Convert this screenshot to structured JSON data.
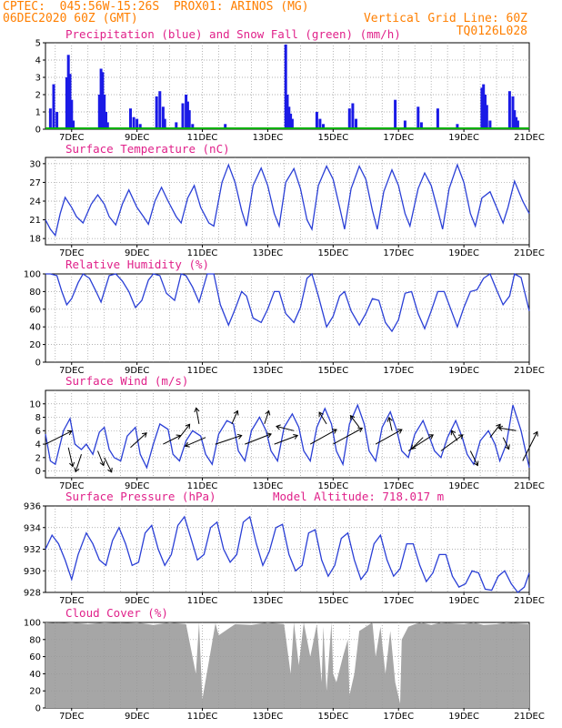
{
  "header": {
    "line1": "CPTEC:  045:56W-15:26S  PROX01: ARINOS (MG)",
    "line2": "06DEC2020 60Z (GMT)",
    "grid_note": "Vertical Grid Line: 60Z",
    "code": "TQ0126L028"
  },
  "colors": {
    "header": "#ff7f00",
    "title": "#e0218a",
    "precip": "#1a1ae6",
    "snow": "#00b000",
    "line": "#2a3fd6",
    "wind_arrow": "#000000",
    "cloud": "#a6a6a6",
    "grid": "#999999"
  },
  "x_tick_labels": [
    "7DEC",
    "9DEC",
    "11DEC",
    "13DEC",
    "15DEC",
    "17DEC",
    "19DEC",
    "21DEC"
  ],
  "x_range_days": [
    6.2,
    21.0
  ],
  "chart_data": [
    {
      "type": "bar",
      "name": "precip",
      "title": "Precipitation (blue) and Snow Fall (green) (mm/h)",
      "ylim": [
        0,
        5
      ],
      "yticks": [
        0,
        1,
        2,
        3,
        4,
        5
      ],
      "x_day": [
        6.35,
        6.45,
        6.55,
        6.85,
        6.9,
        6.95,
        7.0,
        7.05,
        7.85,
        7.9,
        7.95,
        8.0,
        8.05,
        8.1,
        8.8,
        8.9,
        9.0,
        9.1,
        9.6,
        9.7,
        9.8,
        9.85,
        10.2,
        10.4,
        10.5,
        10.55,
        10.6,
        10.7,
        11.7,
        13.55,
        13.6,
        13.65,
        13.7,
        13.75,
        14.5,
        14.6,
        14.7,
        15.5,
        15.6,
        15.7,
        16.9,
        17.2,
        17.6,
        17.7,
        18.2,
        18.8,
        19.55,
        19.6,
        19.65,
        19.7,
        19.8,
        20.4,
        20.5,
        20.55,
        20.6,
        20.65
      ],
      "values": [
        1.2,
        2.6,
        1.0,
        3.0,
        4.3,
        3.2,
        1.7,
        0.5,
        2.0,
        3.5,
        3.3,
        2.0,
        1.0,
        0.4,
        1.2,
        0.7,
        0.6,
        0.3,
        1.9,
        2.2,
        1.3,
        0.6,
        0.4,
        1.5,
        2.0,
        1.6,
        1.1,
        0.3,
        0.3,
        4.9,
        2.0,
        1.3,
        0.9,
        0.6,
        1.0,
        0.6,
        0.3,
        1.2,
        1.5,
        0.6,
        1.7,
        0.5,
        1.3,
        0.4,
        1.2,
        0.3,
        2.4,
        2.6,
        2.0,
        1.4,
        0.5,
        2.2,
        1.9,
        1.1,
        0.7,
        0.5
      ],
      "snow_values": []
    },
    {
      "type": "line",
      "name": "temperature",
      "title": "Surface Temperature (nC)",
      "ylim": [
        17,
        31
      ],
      "yticks": [
        18,
        21,
        24,
        27,
        30
      ],
      "x_day": [
        6.2,
        6.35,
        6.5,
        6.65,
        6.8,
        7.0,
        7.15,
        7.35,
        7.6,
        7.8,
        8.0,
        8.15,
        8.35,
        8.55,
        8.75,
        9.0,
        9.2,
        9.35,
        9.55,
        9.75,
        9.95,
        10.2,
        10.35,
        10.55,
        10.75,
        10.95,
        11.2,
        11.35,
        11.6,
        11.8,
        12.0,
        12.2,
        12.35,
        12.55,
        12.8,
        13.0,
        13.2,
        13.35,
        13.55,
        13.8,
        14.0,
        14.2,
        14.35,
        14.55,
        14.8,
        15.0,
        15.2,
        15.35,
        15.55,
        15.8,
        16.0,
        16.2,
        16.35,
        16.55,
        16.8,
        17.0,
        17.2,
        17.35,
        17.6,
        17.8,
        18.0,
        18.2,
        18.35,
        18.55,
        18.8,
        19.0,
        19.2,
        19.35,
        19.55,
        19.8,
        20.0,
        20.2,
        20.35,
        20.55,
        20.8,
        21.0
      ],
      "values": [
        21.0,
        19.5,
        18.5,
        22.0,
        24.6,
        23.0,
        21.5,
        20.5,
        23.5,
        25.0,
        23.5,
        21.5,
        20.2,
        23.5,
        25.8,
        23.0,
        21.5,
        20.3,
        24.0,
        26.2,
        24.0,
        21.5,
        20.5,
        24.5,
        26.5,
        23.0,
        20.5,
        20.0,
        27.0,
        29.8,
        27.0,
        22.5,
        20.0,
        26.5,
        29.3,
        26.5,
        22.0,
        20.0,
        27.0,
        29.2,
        26.0,
        21.0,
        19.5,
        26.5,
        29.6,
        27.5,
        23.0,
        19.5,
        26.0,
        29.6,
        27.5,
        22.5,
        19.5,
        25.5,
        29.0,
        26.5,
        22.0,
        20.0,
        26.0,
        28.5,
        26.5,
        22.5,
        19.5,
        26.0,
        29.8,
        27.0,
        22.0,
        20.0,
        24.5,
        25.5,
        23.0,
        20.5,
        23.0,
        27.2,
        24.0,
        22.0
      ]
    },
    {
      "type": "line",
      "name": "humidity",
      "title": "Relative Humidity (%)",
      "ylim": [
        0,
        100
      ],
      "yticks": [
        0,
        20,
        40,
        60,
        80,
        100
      ],
      "x_day": [
        6.2,
        6.35,
        6.55,
        6.7,
        6.85,
        7.0,
        7.2,
        7.35,
        7.55,
        7.75,
        7.9,
        8.15,
        8.35,
        8.55,
        8.75,
        8.95,
        9.15,
        9.35,
        9.5,
        9.7,
        9.9,
        10.15,
        10.35,
        10.5,
        10.7,
        10.9,
        11.15,
        11.35,
        11.55,
        11.8,
        12.0,
        12.2,
        12.35,
        12.55,
        12.8,
        13.0,
        13.2,
        13.35,
        13.55,
        13.8,
        14.0,
        14.2,
        14.35,
        14.55,
        14.8,
        15.0,
        15.2,
        15.35,
        15.55,
        15.8,
        16.0,
        16.2,
        16.4,
        16.6,
        16.8,
        17.0,
        17.2,
        17.4,
        17.6,
        17.8,
        18.0,
        18.2,
        18.4,
        18.6,
        18.8,
        19.0,
        19.2,
        19.4,
        19.6,
        19.8,
        20.0,
        20.2,
        20.4,
        20.55,
        20.75,
        21.0
      ],
      "values": [
        100,
        100,
        98,
        80,
        65,
        72,
        90,
        100,
        95,
        80,
        68,
        98,
        100,
        92,
        80,
        62,
        70,
        93,
        100,
        98,
        78,
        70,
        100,
        98,
        85,
        68,
        100,
        100,
        65,
        42,
        60,
        80,
        75,
        50,
        45,
        60,
        80,
        80,
        55,
        45,
        62,
        95,
        100,
        75,
        40,
        52,
        75,
        80,
        58,
        42,
        55,
        72,
        70,
        45,
        35,
        48,
        78,
        80,
        55,
        38,
        58,
        80,
        80,
        60,
        40,
        62,
        80,
        82,
        95,
        100,
        82,
        65,
        75,
        100,
        96,
        58
      ]
    },
    {
      "type": "line",
      "name": "wind",
      "title": "Surface Wind (m/s)",
      "ylim": [
        -1,
        12
      ],
      "yticks": [
        0,
        2,
        4,
        6,
        8,
        10
      ],
      "x_day": [
        6.2,
        6.35,
        6.5,
        6.75,
        6.95,
        7.1,
        7.3,
        7.45,
        7.65,
        7.85,
        8.0,
        8.15,
        8.3,
        8.5,
        8.7,
        8.95,
        9.1,
        9.3,
        9.5,
        9.7,
        9.95,
        10.1,
        10.3,
        10.5,
        10.7,
        10.95,
        11.1,
        11.3,
        11.5,
        11.75,
        11.95,
        12.1,
        12.3,
        12.5,
        12.75,
        12.95,
        13.1,
        13.3,
        13.5,
        13.75,
        13.95,
        14.1,
        14.3,
        14.5,
        14.75,
        14.95,
        15.1,
        15.3,
        15.5,
        15.75,
        15.95,
        16.1,
        16.3,
        16.5,
        16.75,
        16.95,
        17.1,
        17.3,
        17.5,
        17.75,
        17.95,
        18.1,
        18.3,
        18.5,
        18.75,
        18.95,
        19.1,
        19.3,
        19.5,
        19.75,
        19.95,
        20.1,
        20.3,
        20.5,
        20.75,
        21.0
      ],
      "values": [
        5.5,
        1.5,
        1.0,
        6.0,
        7.8,
        4.0,
        3.2,
        4.0,
        2.5,
        5.8,
        6.5,
        3.2,
        2.0,
        1.5,
        5.2,
        6.5,
        2.5,
        0.5,
        4.0,
        7.0,
        6.2,
        2.5,
        1.5,
        4.5,
        6.0,
        5.2,
        2.5,
        1.0,
        5.5,
        7.5,
        7.0,
        3.0,
        1.5,
        6.0,
        8.0,
        6.0,
        3.0,
        1.5,
        6.5,
        8.5,
        6.5,
        3.0,
        1.5,
        6.5,
        9.3,
        7.0,
        3.0,
        1.0,
        7.0,
        9.8,
        7.0,
        3.0,
        1.5,
        6.5,
        8.8,
        6.0,
        3.0,
        2.0,
        5.5,
        7.5,
        5.0,
        3.0,
        2.0,
        5.0,
        7.5,
        5.0,
        2.5,
        1.0,
        4.5,
        6.0,
        4.0,
        1.5,
        4.0,
        9.8,
        6.0,
        0.5
      ],
      "vectors": [
        {
          "day": 6.2,
          "speed": 4.0,
          "dx": 3.6,
          "dy": 1.8
        },
        {
          "day": 6.9,
          "speed": 3.5,
          "dx": 0.6,
          "dy": -2.6
        },
        {
          "day": 7.3,
          "speed": 2.5,
          "dx": -0.8,
          "dy": -2.4
        },
        {
          "day": 7.8,
          "speed": 3.0,
          "dx": 0.8,
          "dy": -2.0
        },
        {
          "day": 8.0,
          "speed": 2.0,
          "dx": 1.0,
          "dy": -2.0
        },
        {
          "day": 8.8,
          "speed": 3.5,
          "dx": 2.2,
          "dy": 2.0
        },
        {
          "day": 9.8,
          "speed": 4.0,
          "dx": 2.4,
          "dy": 1.2
        },
        {
          "day": 10.3,
          "speed": 5.0,
          "dx": 1.4,
          "dy": 1.8
        },
        {
          "day": 10.9,
          "speed": 7.0,
          "dx": -0.4,
          "dy": 2.2
        },
        {
          "day": 11.1,
          "speed": 5.0,
          "dx": -2.8,
          "dy": -1.2
        },
        {
          "day": 11.4,
          "speed": 4.0,
          "dx": 3.6,
          "dy": 1.2
        },
        {
          "day": 11.9,
          "speed": 7.0,
          "dx": 0.8,
          "dy": 1.8
        },
        {
          "day": 12.3,
          "speed": 4.0,
          "dx": 3.6,
          "dy": 1.4
        },
        {
          "day": 12.9,
          "speed": 7.0,
          "dx": 0.6,
          "dy": 1.8
        },
        {
          "day": 13.2,
          "speed": 4.0,
          "dx": 3.2,
          "dy": 1.2
        },
        {
          "day": 13.8,
          "speed": 6.0,
          "dx": -2.4,
          "dy": 0.6
        },
        {
          "day": 14.3,
          "speed": 4.0,
          "dx": 3.6,
          "dy": 2.0
        },
        {
          "day": 14.8,
          "speed": 7.0,
          "dx": -1.0,
          "dy": 1.6
        },
        {
          "day": 15.0,
          "speed": 4.0,
          "dx": 4.0,
          "dy": 2.2
        },
        {
          "day": 15.8,
          "speed": 6.5,
          "dx": -1.2,
          "dy": 1.6
        },
        {
          "day": 16.3,
          "speed": 4.0,
          "dx": 3.6,
          "dy": 2.0
        },
        {
          "day": 16.8,
          "speed": 6.0,
          "dx": -0.4,
          "dy": 1.8
        },
        {
          "day": 17.3,
          "speed": 3.0,
          "dx": 3.4,
          "dy": 2.2
        },
        {
          "day": 17.75,
          "speed": 5.0,
          "dx": -1.6,
          "dy": -1.6
        },
        {
          "day": 18.3,
          "speed": 3.0,
          "dx": 3.0,
          "dy": 2.2
        },
        {
          "day": 18.8,
          "speed": 4.5,
          "dx": -0.8,
          "dy": 1.4
        },
        {
          "day": 19.2,
          "speed": 3.0,
          "dx": 1.0,
          "dy": -2.0
        },
        {
          "day": 19.8,
          "speed": 5.0,
          "dx": 1.4,
          "dy": 1.8
        },
        {
          "day": 20.2,
          "speed": 5.0,
          "dx": 0.8,
          "dy": -1.6
        },
        {
          "day": 20.6,
          "speed": 6.0,
          "dx": -2.4,
          "dy": 0.4
        },
        {
          "day": 20.8,
          "speed": 1.5,
          "dx": 2.0,
          "dy": 4.0
        }
      ]
    },
    {
      "type": "line",
      "name": "pressure",
      "title": "Surface Pressure (hPa)",
      "annotation": "Model Altitude: 718.017 m",
      "ylim": [
        928,
        936
      ],
      "yticks": [
        928,
        930,
        932,
        934,
        936
      ],
      "x_day": [
        6.2,
        6.4,
        6.6,
        6.8,
        7.0,
        7.2,
        7.45,
        7.65,
        7.85,
        8.05,
        8.25,
        8.45,
        8.65,
        8.85,
        9.05,
        9.25,
        9.45,
        9.65,
        9.85,
        10.05,
        10.25,
        10.45,
        10.65,
        10.85,
        11.05,
        11.25,
        11.45,
        11.65,
        11.85,
        12.05,
        12.25,
        12.45,
        12.65,
        12.85,
        13.05,
        13.25,
        13.45,
        13.65,
        13.85,
        14.05,
        14.25,
        14.45,
        14.65,
        14.85,
        15.05,
        15.25,
        15.45,
        15.65,
        15.85,
        16.05,
        16.25,
        16.45,
        16.65,
        16.85,
        17.05,
        17.25,
        17.45,
        17.65,
        17.85,
        18.05,
        18.25,
        18.45,
        18.65,
        18.85,
        19.05,
        19.25,
        19.45,
        19.65,
        19.85,
        20.05,
        20.25,
        20.45,
        20.65,
        20.85,
        21.0
      ],
      "values": [
        932.0,
        933.3,
        932.5,
        931.0,
        929.2,
        931.5,
        933.5,
        932.5,
        931.0,
        930.5,
        932.8,
        934.0,
        932.5,
        930.5,
        930.8,
        933.5,
        934.2,
        932.0,
        930.5,
        931.5,
        934.2,
        935.0,
        933.0,
        931.0,
        931.5,
        934.0,
        934.5,
        932.0,
        930.8,
        931.5,
        934.5,
        935.0,
        932.5,
        930.5,
        931.8,
        934.0,
        934.3,
        931.5,
        930.0,
        930.5,
        933.5,
        933.8,
        931.0,
        929.5,
        930.5,
        933.0,
        933.5,
        931.0,
        929.2,
        930.0,
        932.5,
        933.3,
        931.0,
        929.5,
        930.2,
        932.5,
        932.5,
        930.5,
        929.0,
        929.8,
        931.5,
        931.5,
        929.5,
        928.5,
        928.8,
        930.0,
        929.8,
        928.3,
        928.2,
        929.5,
        930.0,
        928.8,
        928.0,
        928.5,
        929.8
      ]
    },
    {
      "type": "area",
      "name": "cloud",
      "title": "Cloud Cover (%)",
      "ylim": [
        0,
        100
      ],
      "yticks": [
        0,
        20,
        40,
        60,
        80,
        100
      ],
      "x_day": [
        6.2,
        6.6,
        7.0,
        7.5,
        8.0,
        8.5,
        9.0,
        9.5,
        10.0,
        10.5,
        10.8,
        10.9,
        11.0,
        11.4,
        11.5,
        12.0,
        12.5,
        13.0,
        13.5,
        13.7,
        13.8,
        13.95,
        14.1,
        14.3,
        14.5,
        14.65,
        14.7,
        14.8,
        14.95,
        15.0,
        15.1,
        15.3,
        15.45,
        15.5,
        15.65,
        15.8,
        16.0,
        16.2,
        16.3,
        16.45,
        16.6,
        16.75,
        16.9,
        17.05,
        17.1,
        17.3,
        17.5,
        17.7,
        18.0,
        18.3,
        18.6,
        19.0,
        19.3,
        19.6,
        20.0,
        20.3,
        20.6,
        21.0
      ],
      "values": [
        100,
        99,
        100,
        98,
        100,
        99,
        100,
        97,
        100,
        98,
        40,
        100,
        10,
        99,
        85,
        98,
        97,
        100,
        98,
        40,
        100,
        50,
        100,
        60,
        98,
        30,
        95,
        20,
        100,
        40,
        30,
        60,
        80,
        15,
        40,
        90,
        95,
        100,
        60,
        95,
        40,
        90,
        30,
        5,
        80,
        95,
        98,
        100,
        97,
        100,
        99,
        98,
        100,
        97,
        98,
        100,
        99,
        98
      ]
    }
  ]
}
